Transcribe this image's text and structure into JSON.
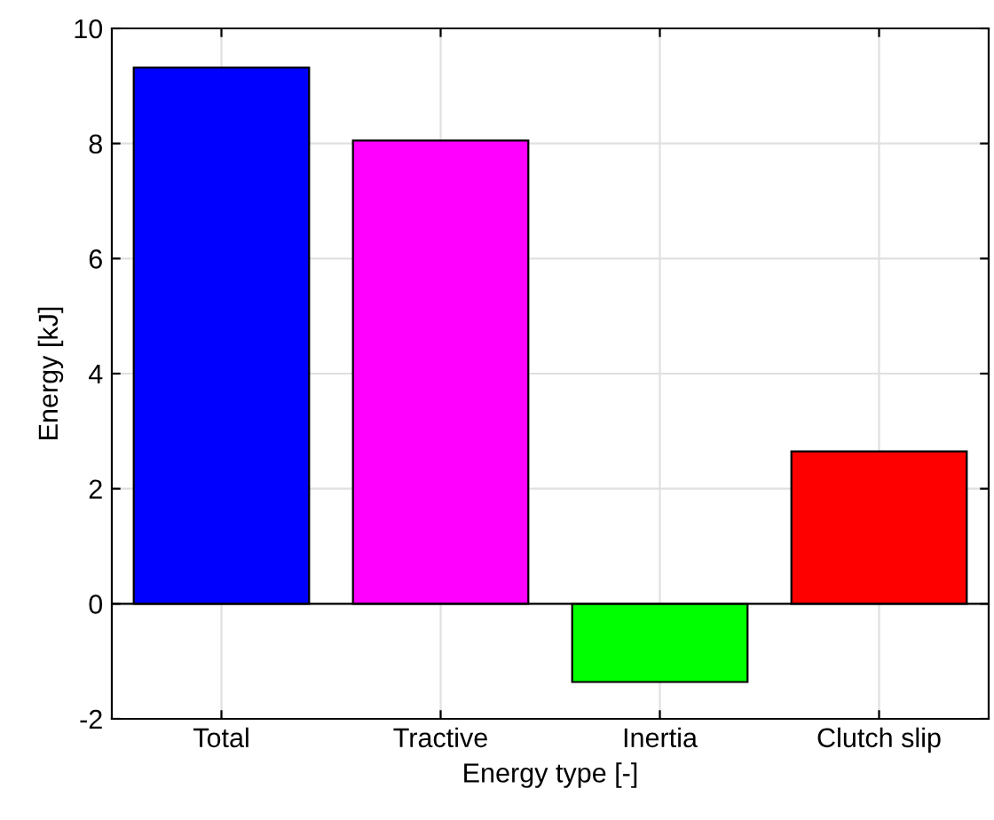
{
  "chart_data": {
    "type": "bar",
    "xlabel": "Energy type [-]",
    "ylabel": "Energy [kJ]",
    "categories": [
      "Total",
      "Tractive",
      "Inertia",
      "Clutch slip"
    ],
    "values": [
      9.32,
      8.05,
      -1.36,
      2.65
    ],
    "colors": [
      "#0000ff",
      "#ff00ff",
      "#00ff00",
      "#ff0000"
    ],
    "ylim": [
      -2,
      10
    ],
    "yticks": [
      -2,
      0,
      2,
      4,
      6,
      8,
      10
    ],
    "grid": true,
    "ref_lines": [
      {
        "axis": "y",
        "value": 0,
        "color": "#000000"
      }
    ]
  }
}
